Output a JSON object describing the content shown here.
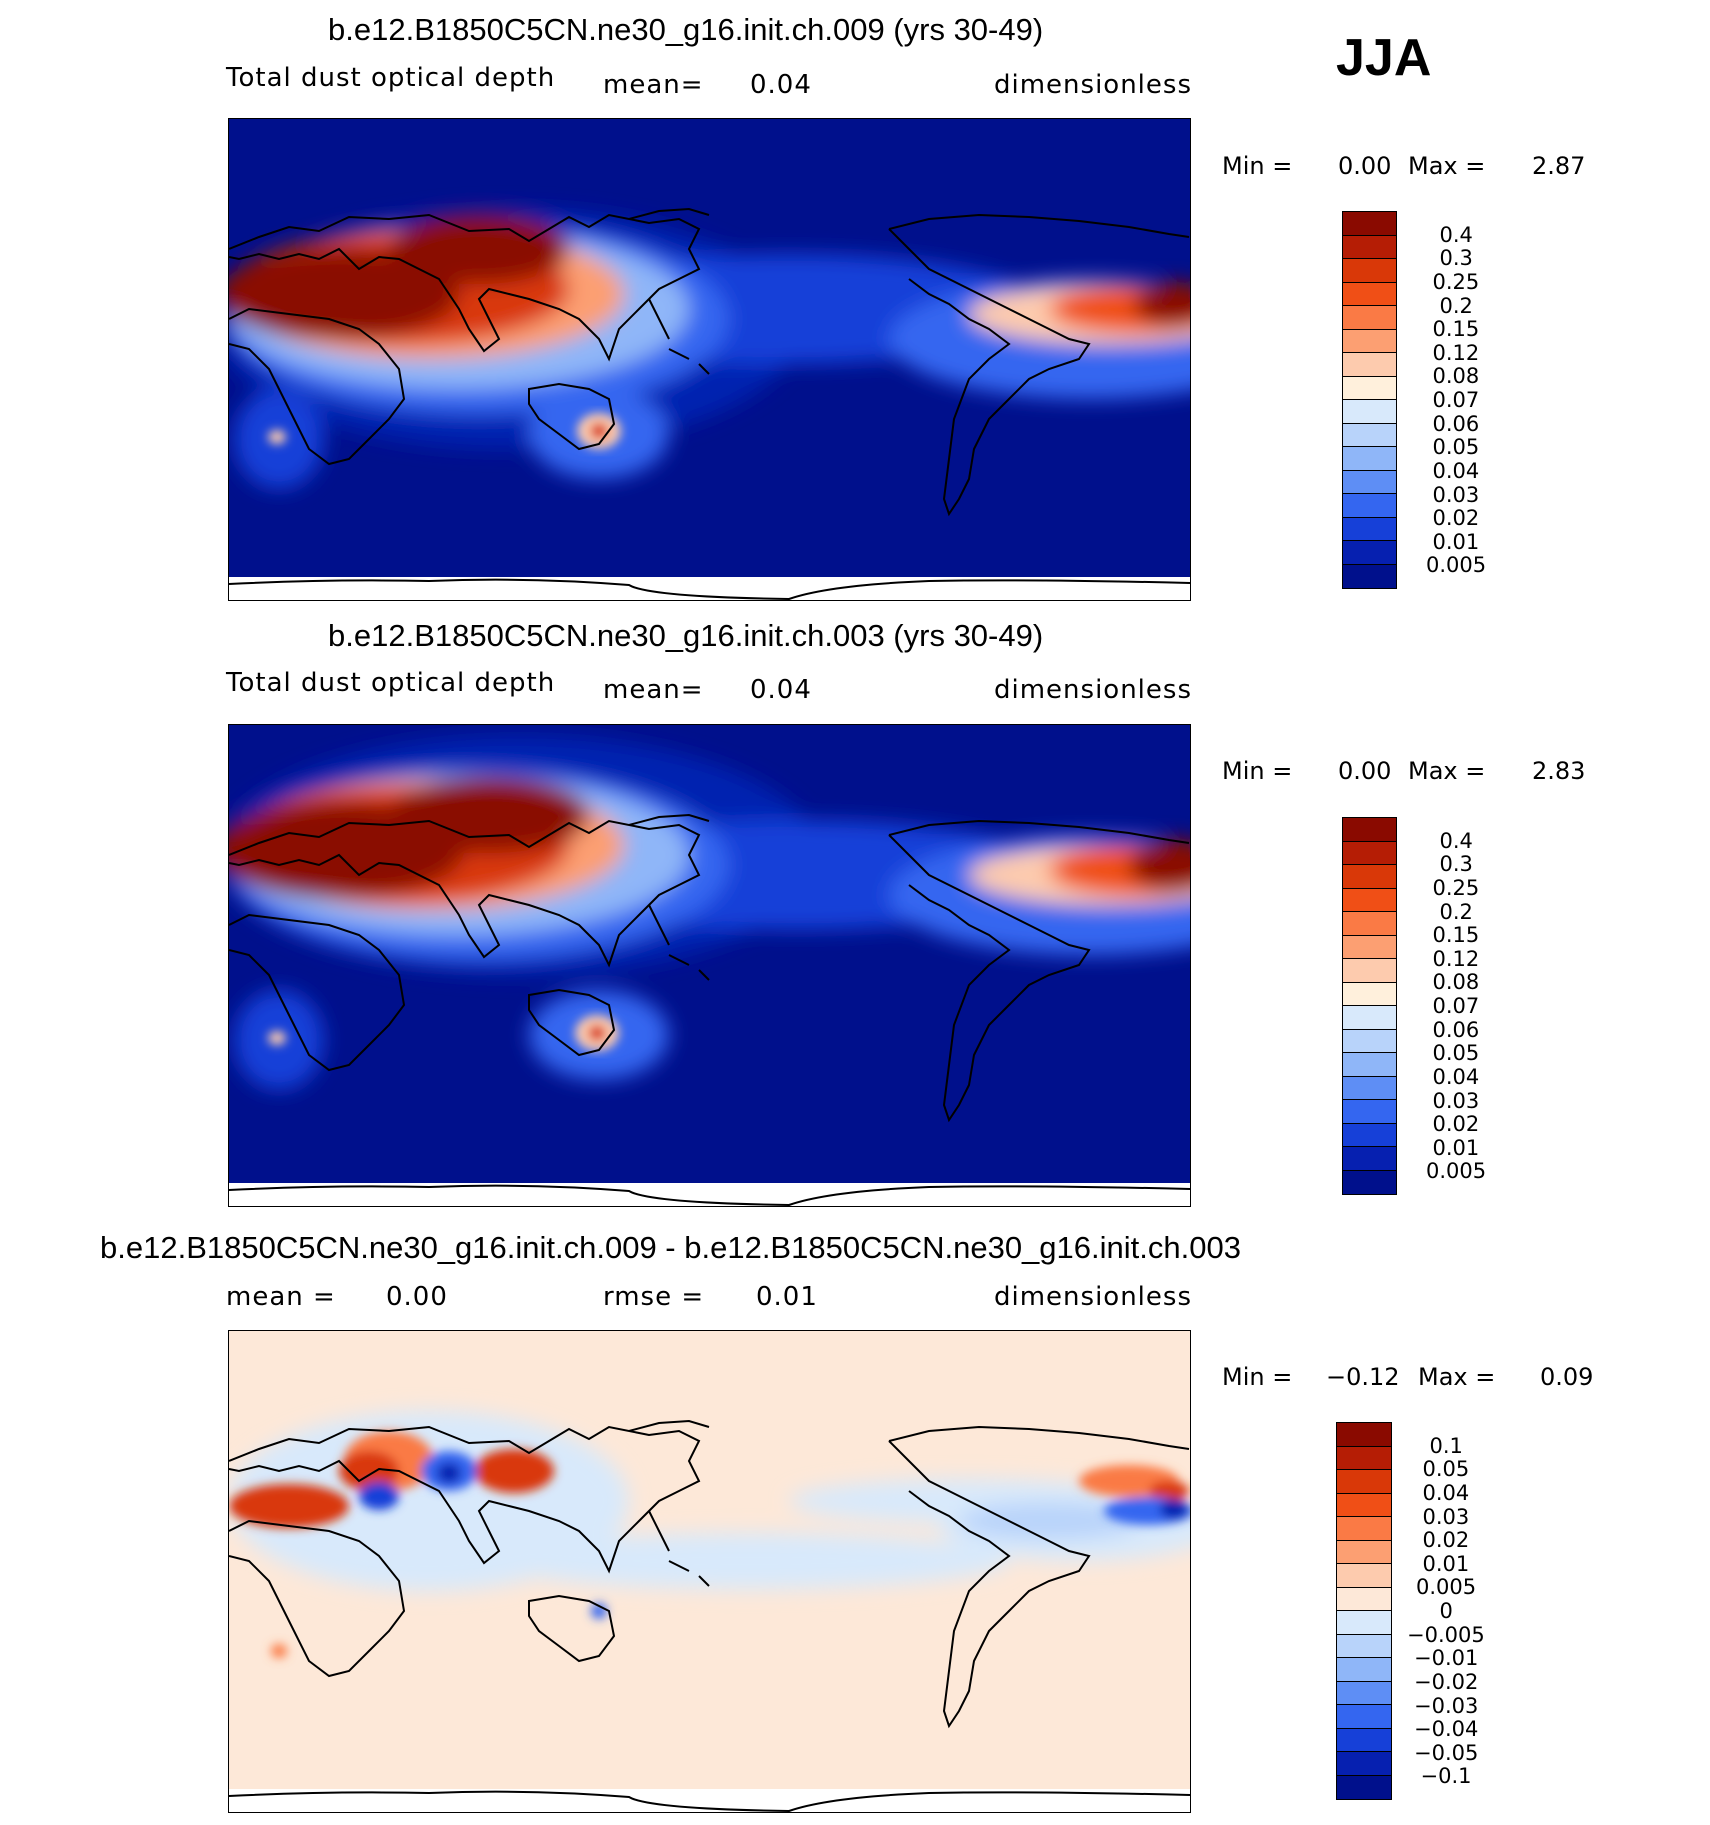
{
  "season": "JJA",
  "panels": [
    {
      "title": "b.e12.B1850C5CN.ne30_g16.init.ch.009 (yrs 30-49)",
      "variable": "Total dust optical depth",
      "stat1_label": "mean=",
      "stat1_value": "0.04",
      "units": "dimensionless",
      "min_label": "Min =",
      "min_value": "0.00",
      "max_label": "Max =",
      "max_value": "2.87"
    },
    {
      "title": "b.e12.B1850C5CN.ne30_g16.init.ch.003 (yrs 30-49)",
      "variable": "Total dust optical depth",
      "stat1_label": "mean=",
      "stat1_value": "0.04",
      "units": "dimensionless",
      "min_label": "Min =",
      "min_value": "0.00",
      "max_label": "Max =",
      "max_value": "2.83"
    },
    {
      "title": "b.e12.B1850C5CN.ne30_g16.init.ch.009 - b.e12.B1850C5CN.ne30_g16.init.ch.003",
      "stat1_label": "mean =",
      "stat1_value": "0.00",
      "stat2_label": "rmse =",
      "stat2_value": "0.01",
      "units": "dimensionless",
      "min_label": "Min =",
      "min_value": "−0.12",
      "max_label": "Max =",
      "max_value": "0.09"
    }
  ],
  "colorbars": {
    "field": {
      "labels": [
        "0.4",
        "0.3",
        "0.25",
        "0.2",
        "0.15",
        "0.12",
        "0.08",
        "0.07",
        "0.06",
        "0.05",
        "0.04",
        "0.03",
        "0.02",
        "0.01",
        "0.005"
      ],
      "colors": [
        "#8a0a00",
        "#b51d05",
        "#d93808",
        "#f04f16",
        "#fa7a45",
        "#fc9f72",
        "#fdcbae",
        "#fff0dc",
        "#d8e9fb",
        "#b8d3fa",
        "#8fb6f8",
        "#5e8ef5",
        "#3466f0",
        "#1640d8",
        "#0620b0",
        "#00108c"
      ]
    },
    "diff": {
      "labels": [
        "0.1",
        "0.05",
        "0.04",
        "0.03",
        "0.02",
        "0.01",
        "0.005",
        "0",
        "−0.005",
        "−0.01",
        "−0.02",
        "−0.03",
        "−0.04",
        "−0.05",
        "−0.1"
      ],
      "colors": [
        "#8a0a00",
        "#b51d05",
        "#d93808",
        "#f04f16",
        "#fa7a45",
        "#fc9f72",
        "#fdcbae",
        "#fde8d8",
        "#d8e9fb",
        "#b8d3fa",
        "#8fb6f8",
        "#5e8ef5",
        "#3466f0",
        "#1640d8",
        "#0620b0",
        "#00108c"
      ]
    }
  }
}
